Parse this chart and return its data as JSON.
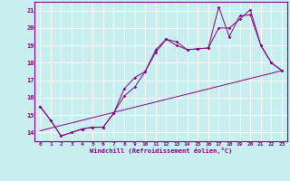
{
  "xlabel": "Windchill (Refroidissement éolien,°C)",
  "bg_color": "#c8eef0",
  "grid_color": "#ffffff",
  "line_color": "#800080",
  "xlim": [
    -0.5,
    23.5
  ],
  "ylim": [
    13.5,
    21.5
  ],
  "yticks": [
    14,
    15,
    16,
    17,
    18,
    19,
    20,
    21
  ],
  "xtick_labels": [
    "0",
    "1",
    "2",
    "3",
    "4",
    "5",
    "6",
    "7",
    "8",
    "9",
    "10",
    "11",
    "12",
    "13",
    "14",
    "15",
    "16",
    "17",
    "18",
    "19",
    "20",
    "21",
    "22",
    "23"
  ],
  "xtick_pos": [
    0,
    1,
    2,
    3,
    4,
    5,
    6,
    7,
    8,
    9,
    10,
    11,
    12,
    13,
    14,
    15,
    16,
    17,
    18,
    19,
    20,
    21,
    22,
    23
  ],
  "line1_x": [
    0,
    1,
    2,
    3,
    4,
    5,
    6,
    7,
    8,
    9,
    10,
    11,
    12,
    13,
    14,
    15,
    16,
    17,
    18,
    19,
    20,
    21,
    22,
    23
  ],
  "line1_y": [
    15.5,
    14.7,
    13.8,
    14.0,
    14.2,
    14.3,
    14.3,
    15.1,
    16.5,
    17.15,
    17.5,
    18.75,
    19.35,
    19.2,
    18.75,
    18.8,
    18.85,
    21.2,
    19.5,
    20.7,
    20.75,
    19.0,
    18.0,
    17.55
  ],
  "line2_x": [
    0,
    1,
    2,
    3,
    4,
    5,
    6,
    7,
    8,
    9,
    10,
    11,
    12,
    13,
    14,
    15,
    16,
    17,
    18,
    19,
    20,
    21,
    22,
    23
  ],
  "line2_y": [
    15.5,
    14.7,
    13.8,
    14.0,
    14.2,
    14.3,
    14.3,
    15.1,
    16.1,
    16.6,
    17.5,
    18.6,
    19.35,
    19.0,
    18.75,
    18.8,
    18.85,
    20.0,
    20.0,
    20.5,
    21.05,
    19.0,
    18.0,
    17.55
  ],
  "line3_x": [
    0,
    23
  ],
  "line3_y": [
    14.1,
    17.55
  ]
}
